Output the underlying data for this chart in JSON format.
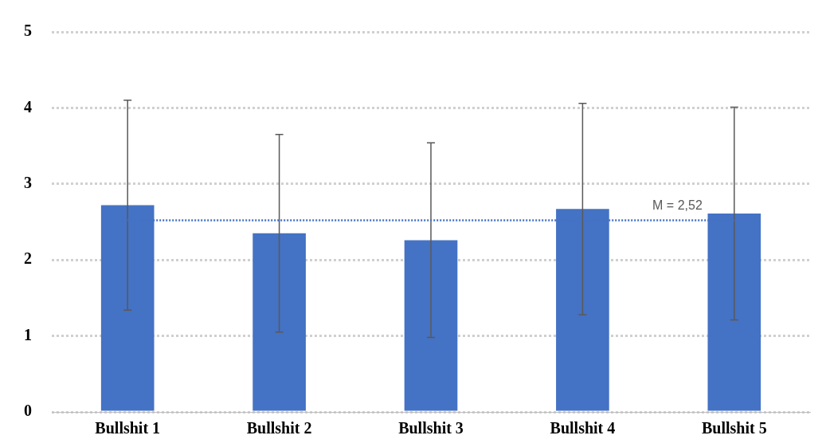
{
  "chart_data": {
    "type": "bar",
    "categories": [
      "Bullshit 1",
      "Bullshit 2",
      "Bullshit 3",
      "Bullshit 4",
      "Bullshit 5"
    ],
    "series": [
      {
        "color": "#4472c4",
        "values": [
          2.72,
          2.35,
          2.26,
          2.67,
          2.61
        ],
        "errors": [
          1.38,
          1.3,
          1.28,
          1.39,
          1.4
        ]
      }
    ],
    "ylim": [
      0,
      5
    ],
    "yticks": [
      0,
      1,
      2,
      3,
      4,
      5
    ],
    "grid": "y",
    "legend": false,
    "ref_lines": [
      {
        "axis": "y",
        "value": 2.52,
        "label": "M = 2,52",
        "color": "#4472c4",
        "line_style": "dotted"
      }
    ]
  }
}
